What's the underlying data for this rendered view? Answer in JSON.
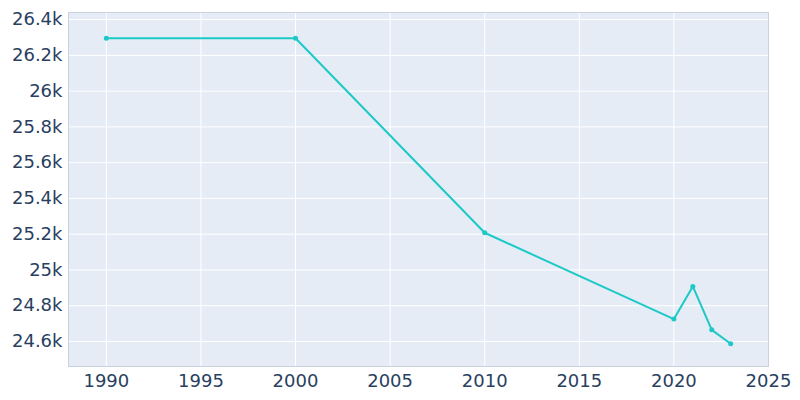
{
  "chart_data": {
    "type": "line",
    "x": [
      1990,
      2000,
      2010,
      2020,
      2021,
      2022,
      2023
    ],
    "values": [
      26296,
      26296,
      25208,
      24725,
      24908,
      24665,
      24587
    ],
    "color": "#1cc9c7",
    "marker": "circle",
    "xlim": [
      1988,
      2025
    ],
    "xticks": [
      1990,
      1995,
      2000,
      2005,
      2010,
      2015,
      2020,
      2025
    ],
    "ylim": [
      24460,
      26440
    ],
    "yticks": [
      {
        "value": 24600,
        "label": "24.6k"
      },
      {
        "value": 24800,
        "label": "24.8k"
      },
      {
        "value": 25000,
        "label": "25k"
      },
      {
        "value": 25200,
        "label": "25.2k"
      },
      {
        "value": 25400,
        "label": "25.4k"
      },
      {
        "value": 25600,
        "label": "25.6k"
      },
      {
        "value": 25800,
        "label": "25.8k"
      },
      {
        "value": 26000,
        "label": "26k"
      },
      {
        "value": 26200,
        "label": "26.2k"
      },
      {
        "value": 26400,
        "label": "26.4k"
      }
    ],
    "grid": true
  }
}
